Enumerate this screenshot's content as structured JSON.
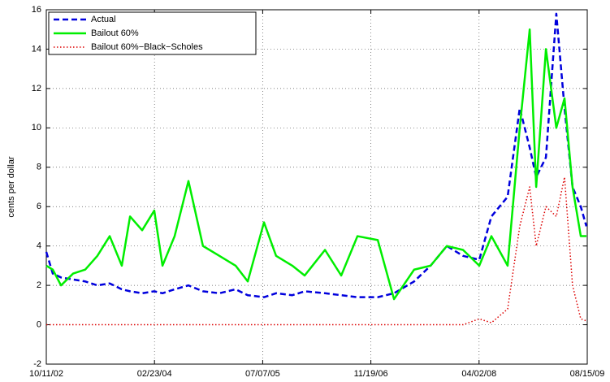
{
  "chart_data": {
    "type": "line",
    "y_label": "cents per dollar",
    "x": [
      "2002-10-11",
      "2002-11-10",
      "2002-12-18",
      "2003-02-12",
      "2003-04-09",
      "2003-06-04",
      "2003-07-31",
      "2003-09-25",
      "2003-11-02",
      "2003-12-28",
      "2004-02-22",
      "2004-03-31",
      "2004-05-26",
      "2004-07-29",
      "2004-10-04",
      "2004-12-19",
      "2005-03-04",
      "2005-04-29",
      "2005-07-13",
      "2005-09-07",
      "2005-11-21",
      "2006-01-17",
      "2006-04-21",
      "2006-07-05",
      "2006-09-18",
      "2006-12-21",
      "2007-03-06",
      "2007-06-07",
      "2007-08-22",
      "2007-11-05",
      "2008-01-19",
      "2008-04-03",
      "2008-05-29",
      "2008-08-12",
      "2008-10-07",
      "2008-11-22",
      "2008-12-22",
      "2009-02-05",
      "2009-03-25",
      "2009-05-02",
      "2009-06-08",
      "2009-07-16",
      "2009-08-11"
    ],
    "series": [
      {
        "name": "Actual",
        "color": "#0000dd",
        "line_style": "dashed",
        "values": [
          3.7,
          2.6,
          2.4,
          2.3,
          2.2,
          2.0,
          2.1,
          1.8,
          1.7,
          1.6,
          1.7,
          1.6,
          1.8,
          2.0,
          1.7,
          1.6,
          1.8,
          1.5,
          1.4,
          1.6,
          1.5,
          1.7,
          1.6,
          1.5,
          1.4,
          1.4,
          1.6,
          2.2,
          3.0,
          4.0,
          3.5,
          3.3,
          5.5,
          6.5,
          11.0,
          9.0,
          7.5,
          8.5,
          15.8,
          11.0,
          7.0,
          6.0,
          5.0
        ]
      },
      {
        "name": "Bailout 60%",
        "color": "#00ee00",
        "line_style": "solid",
        "values": [
          3.0,
          2.8,
          2.0,
          2.6,
          2.8,
          3.5,
          4.5,
          3.0,
          5.5,
          4.8,
          5.8,
          3.0,
          4.5,
          7.3,
          4.0,
          3.5,
          3.0,
          2.2,
          5.2,
          3.5,
          3.0,
          2.5,
          3.8,
          2.5,
          4.5,
          4.3,
          1.3,
          2.8,
          3.0,
          4.0,
          3.8,
          3.0,
          4.5,
          3.0,
          10.0,
          15.0,
          7.0,
          14.0,
          10.0,
          11.5,
          7.0,
          4.5,
          4.5
        ]
      },
      {
        "name": "Bailout 60%−Black−Scholes",
        "color": "#dd0000",
        "line_style": "dotted",
        "values": [
          0,
          0,
          0,
          0,
          0,
          0,
          0,
          0,
          0,
          0,
          0,
          0,
          0,
          0,
          0,
          0,
          0,
          0,
          0,
          0,
          0,
          0,
          0,
          0,
          0,
          0,
          0,
          0,
          0,
          0,
          0,
          0.3,
          0.1,
          0.8,
          5.0,
          7.0,
          4.0,
          6.0,
          5.5,
          7.5,
          2.0,
          0.3,
          0.2
        ]
      }
    ],
    "xlim": [
      "2002-10-11",
      "2009-08-15"
    ],
    "xticks": [
      {
        "value": "2002-10-11",
        "label": "10/11/02"
      },
      {
        "value": "2004-02-23",
        "label": "02/23/04"
      },
      {
        "value": "2005-07-07",
        "label": "07/07/05"
      },
      {
        "value": "2006-11-19",
        "label": "11/19/06"
      },
      {
        "value": "2008-04-02",
        "label": "04/02/08"
      },
      {
        "value": "2009-08-15",
        "label": "08/15/09"
      }
    ],
    "ylim": [
      -2,
      16
    ],
    "yticks": [
      -2,
      0,
      2,
      4,
      6,
      8,
      10,
      12,
      14,
      16
    ],
    "grid": true,
    "legend": "upper left"
  }
}
